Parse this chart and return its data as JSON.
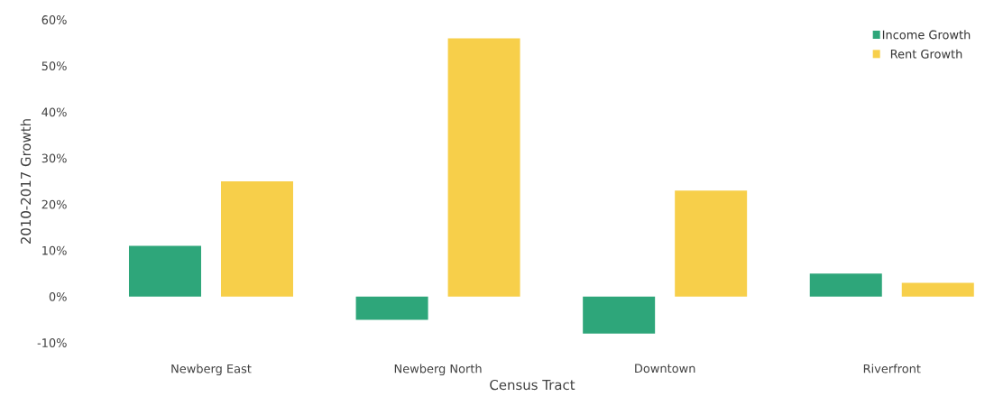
{
  "chart_data": {
    "type": "bar",
    "xlabel": "Census Tract",
    "ylabel": "2010-2017 Growth",
    "categories": [
      "Newberg East",
      "Newberg North",
      "Downtown",
      "Riverfront"
    ],
    "series": [
      {
        "name": "Income Growth",
        "color": "#2ea67a",
        "values": [
          11,
          -5,
          -8,
          5
        ]
      },
      {
        "name": "Rent Growth",
        "color": "#f7cf4a",
        "values": [
          25,
          56,
          23,
          3
        ]
      }
    ],
    "ylim": [
      -10,
      60
    ],
    "yticks": [
      {
        "value": -10,
        "label": "-10%"
      },
      {
        "value": 0,
        "label": "0%"
      },
      {
        "value": 10,
        "label": "10%"
      },
      {
        "value": 20,
        "label": "20%"
      },
      {
        "value": 30,
        "label": "30%"
      },
      {
        "value": 40,
        "label": "40%"
      },
      {
        "value": 50,
        "label": "50%"
      },
      {
        "value": 60,
        "label": "60%"
      }
    ],
    "legend": "top right"
  }
}
